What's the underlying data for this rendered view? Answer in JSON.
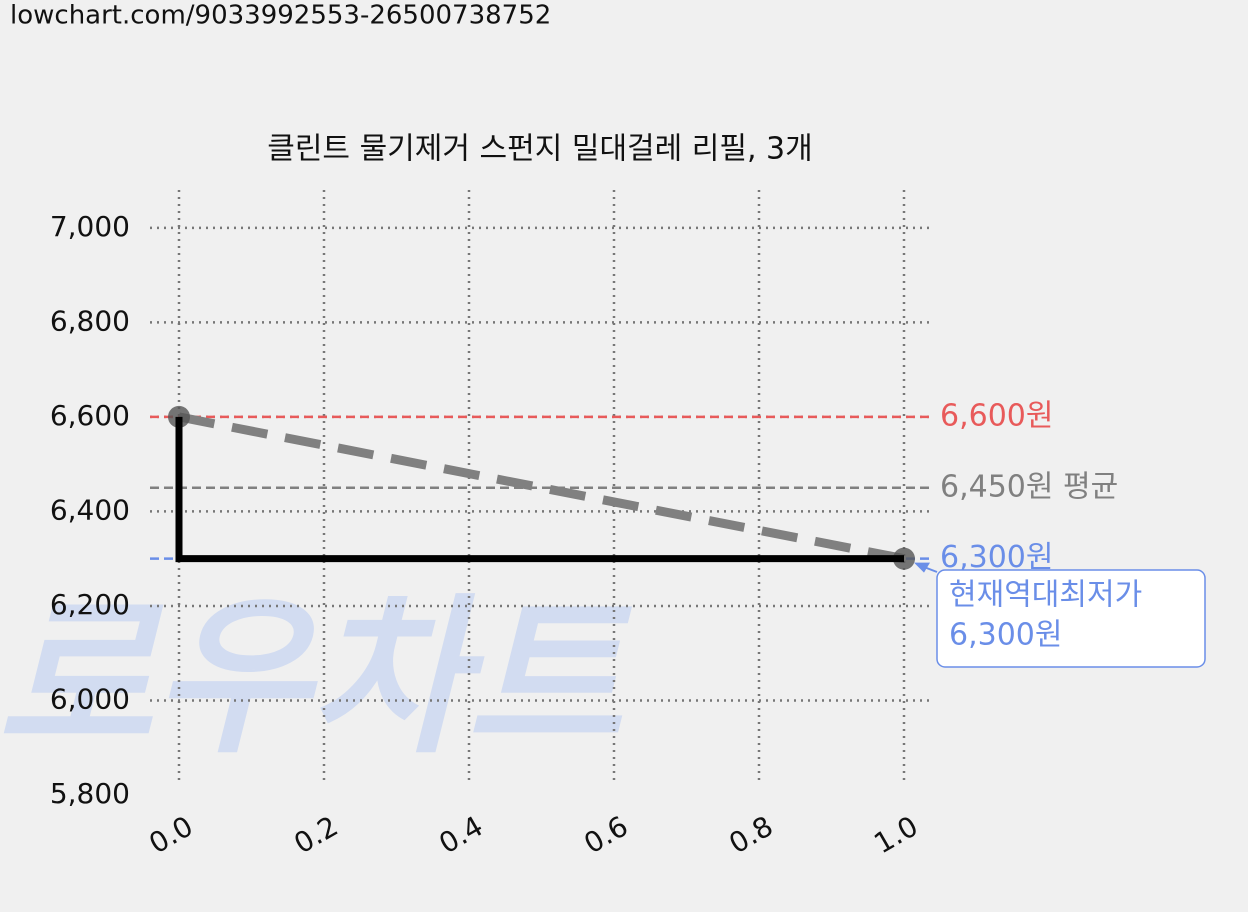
{
  "page_url": "lowchart.com/9033992553-26500738752",
  "chart_data": {
    "type": "line",
    "title": "클린트 물기제거 스펀지 밀대걸레 리필, 3개",
    "watermark": "로우차트",
    "xlim": [
      -0.04,
      1.04
    ],
    "xticks": [
      {
        "value": 0,
        "label": "0.0"
      },
      {
        "value": 0.2,
        "label": "0.2"
      },
      {
        "value": 0.4,
        "label": "0.4"
      },
      {
        "value": 0.6,
        "label": "0.6"
      },
      {
        "value": 0.8,
        "label": "0.8"
      },
      {
        "value": 1,
        "label": "1.0"
      }
    ],
    "ylim": [
      5800,
      7080
    ],
    "yticks": [
      {
        "value": 5800,
        "label": "5,800"
      },
      {
        "value": 6000,
        "label": "6,000"
      },
      {
        "value": 6200,
        "label": "6,200"
      },
      {
        "value": 6400,
        "label": "6,400"
      },
      {
        "value": 6600,
        "label": "6,600"
      },
      {
        "value": 6800,
        "label": "6,800"
      },
      {
        "value": 7000,
        "label": "7,000"
      }
    ],
    "grid": true,
    "series": [
      {
        "style": "dashed",
        "color": "#808080",
        "markers": true,
        "x": [
          0,
          1
        ],
        "values": [
          6600,
          6300
        ]
      },
      {
        "style": "solid",
        "color": "#000000",
        "markers": false,
        "x": [
          0,
          0,
          1
        ],
        "values": [
          6600,
          6300,
          6300
        ]
      }
    ],
    "reference_lines": [
      {
        "value": 6600,
        "label": "6,600원",
        "color": "#e85a5a"
      },
      {
        "value": 6450,
        "label": "6,450원 평균",
        "color": "#808080"
      },
      {
        "value": 6300,
        "label": "6,300원",
        "color": "#6a8ee8"
      }
    ],
    "annotation": {
      "lines": [
        "현재역대최저가",
        "6,300원"
      ],
      "x": 1,
      "y": 6300,
      "color": "#6a8ee8"
    }
  }
}
